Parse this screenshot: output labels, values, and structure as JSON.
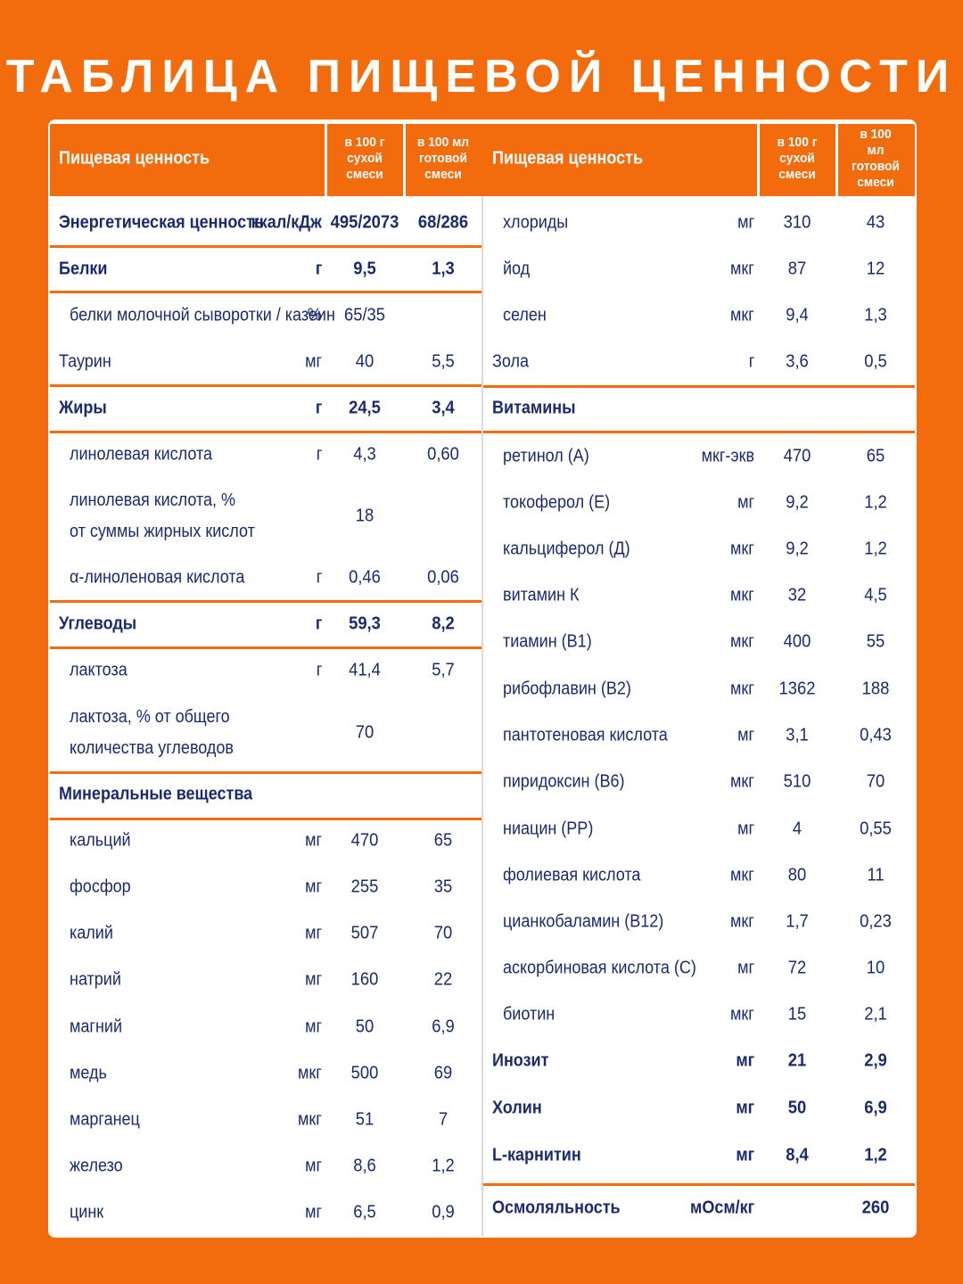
{
  "title": "ТАБЛИЦА ПИЩЕВОЙ ЦЕННОСТИ",
  "tables": [
    {
      "header": {
        "name": "Пищевая ценность",
        "per_100g": "в 100 г\nсухой\nсмеси",
        "per_100ml": "в 100 мл\nготовой\nсмеси"
      },
      "rows": [
        [
          "Энергетическая ценность",
          "ккал/кДж",
          "495/2073",
          "68/286"
        ],
        [
          "Белки",
          "г",
          "9,5",
          "1,3"
        ],
        [
          "белки молочной сыворотки / казеин",
          "%",
          "65/35",
          null
        ],
        [
          "Таурин",
          "мг",
          "40",
          "5,5"
        ],
        [
          "Жиры",
          "г",
          "24,5",
          "3,4"
        ],
        [
          "линолевая кислота",
          "г",
          "4,3",
          "0,60"
        ],
        [
          "линолевая кислота, %\nот суммы жирных кислот",
          null,
          "18",
          null
        ],
        [
          "α-линоленовая кислота",
          "г",
          "0,46",
          "0,06"
        ],
        [
          "Углеводы",
          "г",
          "59,3",
          "8,2"
        ],
        [
          "лактоза",
          "г",
          "41,4",
          "5,7"
        ],
        [
          "лактоза, % от общего\nколичества углеводов",
          null,
          "70",
          null
        ],
        [
          "Минеральные вещества",
          null,
          null,
          null
        ],
        [
          "кальций",
          "мг",
          "470",
          "65"
        ],
        [
          "фосфор",
          "мг",
          "255",
          "35"
        ],
        [
          "калий",
          "мг",
          "507",
          "70"
        ],
        [
          "натрий",
          "мг",
          "160",
          "22"
        ],
        [
          "магний",
          "мг",
          "50",
          "6,9"
        ],
        [
          "медь",
          "мкг",
          "500",
          "69"
        ],
        [
          "марганец",
          "мкг",
          "51",
          "7"
        ],
        [
          "железо",
          "мг",
          "8,6",
          "1,2"
        ],
        [
          "цинк",
          "мг",
          "6,5",
          "0,9"
        ]
      ]
    },
    {
      "header": {
        "name": "Пищевая ценность",
        "per_100g": "в 100 г\nсухой\nсмеси",
        "per_100ml": "в 100 мл\nготовой\nсмеси"
      },
      "rows": [
        [
          "хлориды",
          "мг",
          "310",
          "43"
        ],
        [
          "йод",
          "мкг",
          "87",
          "12"
        ],
        [
          "селен",
          "мкг",
          "9,4",
          "1,3"
        ],
        [
          "Зола",
          "г",
          "3,6",
          "0,5"
        ],
        [
          "Витамины",
          null,
          null,
          null
        ],
        [
          "ретинол (А)",
          "мкг-экв",
          "470",
          "65"
        ],
        [
          "токоферол (Е)",
          "мг",
          "9,2",
          "1,2"
        ],
        [
          "кальциферол (Д)",
          "мкг",
          "9,2",
          "1,2"
        ],
        [
          "витамин К",
          "мкг",
          "32",
          "4,5"
        ],
        [
          "тиамин (В1)",
          "мкг",
          "400",
          "55"
        ],
        [
          "рибофлавин (В2)",
          "мкг",
          "1362",
          "188"
        ],
        [
          "пантотеновая кислота",
          "мг",
          "3,1",
          "0,43"
        ],
        [
          "пиридоксин (В6)",
          "мкг",
          "510",
          "70"
        ],
        [
          "ниацин (РР)",
          "мг",
          "4",
          "0,55"
        ],
        [
          "фолиевая кислота",
          "мкг",
          "80",
          "11"
        ],
        [
          "цианкобаламин (В12)",
          "мкг",
          "1,7",
          "0,23"
        ],
        [
          "аскорбиновая кислота (С)",
          "мг",
          "72",
          "10"
        ],
        [
          "биотин",
          "мкг",
          "15",
          "2,1"
        ],
        [
          "Инозит",
          "мг",
          "21",
          "2,9"
        ],
        [
          "Холин",
          "мг",
          "50",
          "6,9"
        ],
        [
          "L-карнитин",
          "мг",
          "8,4",
          "1,2"
        ],
        [
          "Осмоляльность",
          "мОсм/кг",
          null,
          "260"
        ]
      ]
    }
  ]
}
